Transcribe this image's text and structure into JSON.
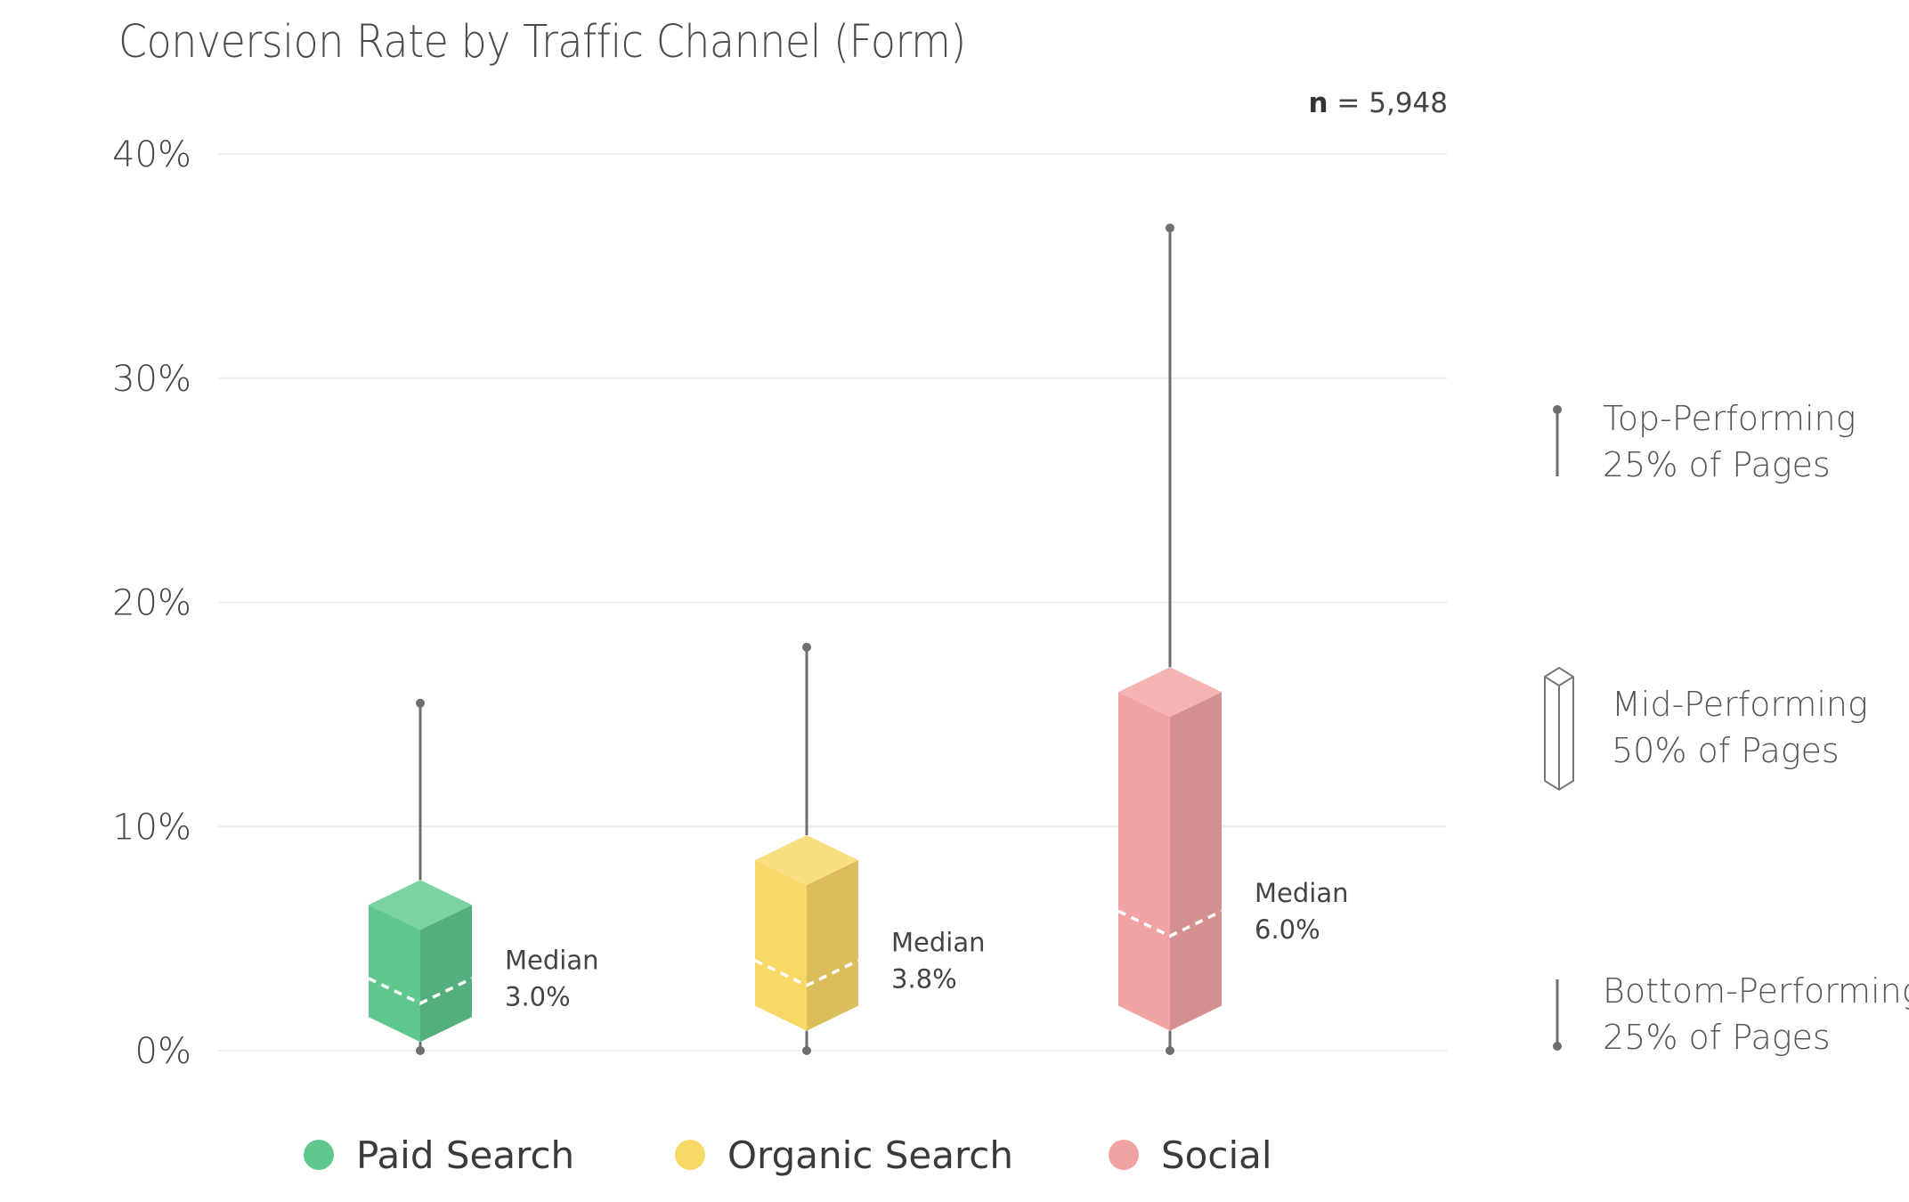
{
  "title": "Conversion Rate by Traffic Channel (Form)",
  "note": {
    "prefix": "n",
    "value": "= 5,948"
  },
  "chart_data": {
    "type": "box",
    "title": "Conversion Rate by Traffic Channel (Form)",
    "ylim": [
      0,
      40
    ],
    "yticks": [
      0,
      10,
      20,
      30,
      40
    ],
    "ytick_labels": [
      "0%",
      "10%",
      "20%",
      "30%",
      "40%"
    ],
    "grid": true,
    "legend_position": "bottom",
    "series": [
      {
        "name": "Paid Search",
        "color": "#5ec88f",
        "min": 0.0,
        "q1": 1.5,
        "median": 3.0,
        "q3": 6.5,
        "max": 15.5,
        "median_label": "Median",
        "median_value": "3.0%"
      },
      {
        "name": "Organic Search",
        "color": "#f8d867",
        "min": 0.0,
        "q1": 2.0,
        "median": 3.8,
        "q3": 8.5,
        "max": 18.0,
        "median_label": "Median",
        "median_value": "3.8%"
      },
      {
        "name": "Social",
        "color": "#f1a3a3",
        "min": 0.0,
        "q1": 2.0,
        "median": 6.0,
        "q3": 16.0,
        "max": 36.7,
        "median_label": "Median",
        "median_value": "6.0%"
      }
    ]
  },
  "key": {
    "top": [
      "Top-Performing",
      "25% of Pages"
    ],
    "mid": [
      "Mid-Performing",
      "50% of Pages"
    ],
    "bottom": [
      "Bottom-Performing",
      "25% of Pages"
    ]
  }
}
